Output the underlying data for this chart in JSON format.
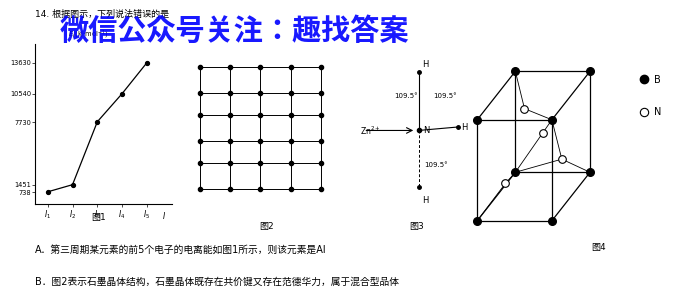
{
  "title_question": "14. 根据图示，下列说法错误的是",
  "watermark": "微信公众号关注：趣找答案",
  "watermark_color": "#0000FF",
  "answer_A": "A．第三周期某元素的前5个电子的电离能如图1所示，则该元素是Al",
  "answer_B": "B．图2表示石墨晶体结构，石墨晶体既存在共价键又存在范德华力，属于混合型品体",
  "graph1_y_values": [
    738,
    1451,
    7730,
    10540,
    13630
  ],
  "graph1_y_ticks": [
    738,
    1451,
    7730,
    10540,
    13630
  ],
  "graph1_ylabel": "E/(kJ·mol⁻¹)",
  "bg_color": "#ffffff",
  "text_color": "#000000"
}
